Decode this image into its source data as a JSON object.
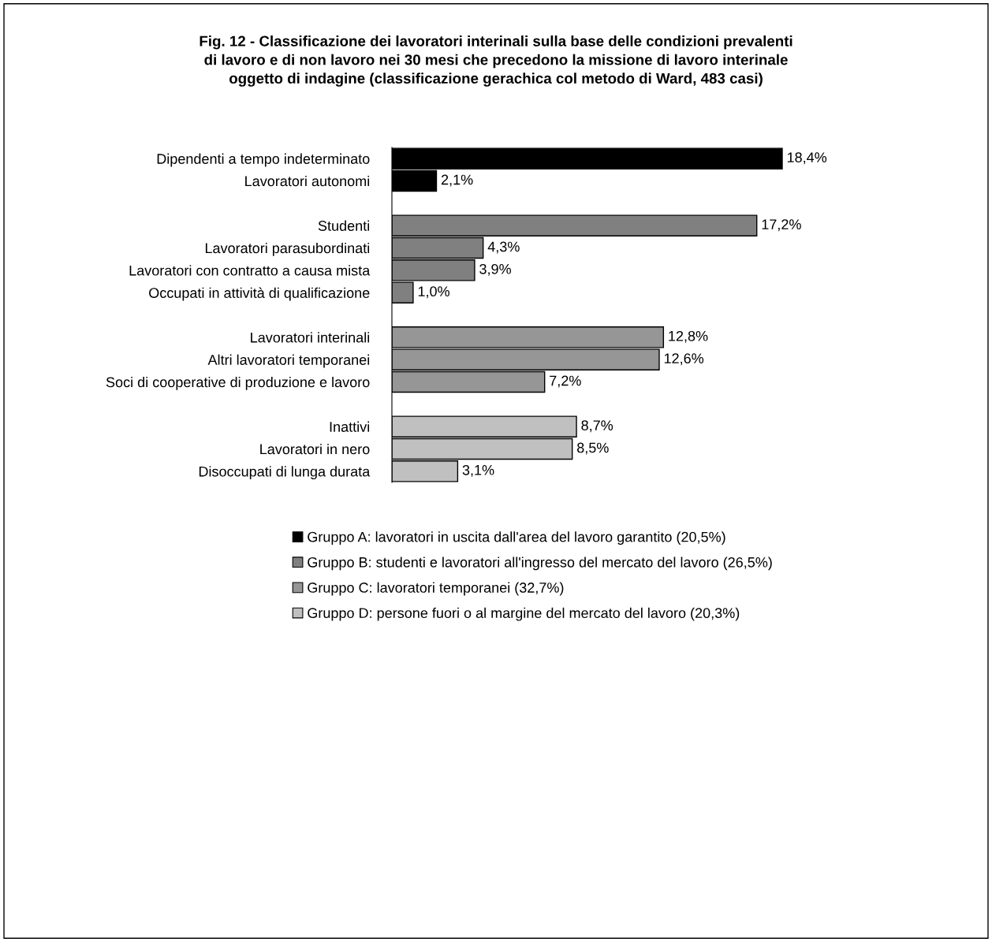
{
  "chart_data": {
    "type": "bar",
    "orientation": "horizontal",
    "title": "Fig. 12 - Classificazione dei lavoratori interinali sulla base delle condizioni prevalenti\ndi lavoro e di non lavoro nei 30 mesi che precedono la missione di lavoro interinale\noggetto di indagine (classificazione gerachica col metodo di Ward, 483 casi)",
    "categories": [
      "Dipendenti a tempo indeterminato",
      "Lavoratori autonomi",
      null,
      "Studenti",
      "Lavoratori parasubordinati",
      "Lavoratori con contratto a causa mista",
      "Occupati in attività di qualificazione",
      null,
      "Lavoratori interinali",
      "Altri lavoratori temporanei",
      "Soci di cooperative di produzione e lavoro",
      null,
      "Inattivi",
      "Lavoratori in nero",
      "Disoccupati di lunga durata"
    ],
    "series": [
      {
        "name": "Gruppo A: lavoratori in uscita dall'area del lavoro garantito (20,5%)",
        "color": "#000000",
        "values": [
          18.4,
          2.1,
          null,
          null,
          null,
          null,
          null,
          null,
          null,
          null,
          null,
          null,
          null,
          null,
          null
        ],
        "value_labels": [
          "18,4%",
          "2,1%",
          null,
          null,
          null,
          null,
          null,
          null,
          null,
          null,
          null,
          null,
          null,
          null,
          null
        ]
      },
      {
        "name": "Gruppo B: studenti e lavoratori all'ingresso del mercato del lavoro (26,5%)",
        "color": "#808080",
        "values": [
          null,
          null,
          null,
          17.2,
          4.3,
          3.9,
          1.0,
          null,
          null,
          null,
          null,
          null,
          null,
          null,
          null
        ],
        "value_labels": [
          null,
          null,
          null,
          "17,2%",
          "4,3%",
          "3,9%",
          "1,0%",
          null,
          null,
          null,
          null,
          null,
          null,
          null,
          null
        ]
      },
      {
        "name": "Gruppo C: lavoratori temporanei (32,7%)",
        "color": "#969696",
        "values": [
          null,
          null,
          null,
          null,
          null,
          null,
          null,
          null,
          12.8,
          12.6,
          7.2,
          null,
          null,
          null,
          null
        ],
        "value_labels": [
          null,
          null,
          null,
          null,
          null,
          null,
          null,
          null,
          "12,8%",
          "12,6%",
          "7,2%",
          null,
          null,
          null,
          null
        ]
      },
      {
        "name": "Gruppo D: persone fuori o al margine del mercato del lavoro (20,3%)",
        "color": "#c0c0c0",
        "values": [
          null,
          null,
          null,
          null,
          null,
          null,
          null,
          null,
          null,
          null,
          null,
          null,
          8.7,
          8.5,
          3.1
        ],
        "value_labels": [
          null,
          null,
          null,
          null,
          null,
          null,
          null,
          null,
          null,
          null,
          null,
          null,
          "8,7%",
          "8,5%",
          "3,1%"
        ]
      }
    ],
    "legend": "bottom",
    "grid": false
  }
}
